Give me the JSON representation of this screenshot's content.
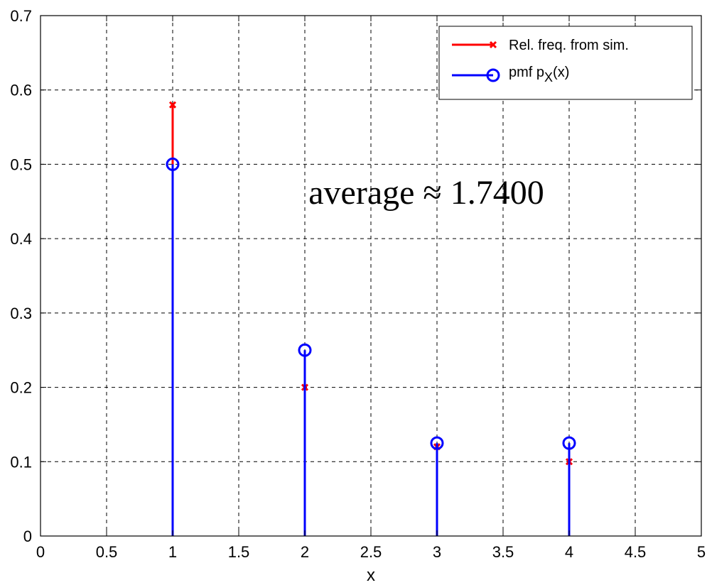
{
  "chart_data": {
    "type": "stem",
    "xlabel": "x",
    "ylabel": "",
    "xlim": [
      0,
      5
    ],
    "ylim": [
      0,
      0.7
    ],
    "xticks": [
      0,
      0.5,
      1,
      1.5,
      2,
      2.5,
      3,
      3.5,
      4,
      4.5,
      5
    ],
    "xtick_labels": [
      "0",
      "0.5",
      "1",
      "1.5",
      "2",
      "2.5",
      "3",
      "3.5",
      "4",
      "4.5",
      "5"
    ],
    "yticks": [
      0,
      0.1,
      0.2,
      0.3,
      0.4,
      0.5,
      0.6,
      0.7
    ],
    "ytick_labels": [
      "0",
      "0.1",
      "0.2",
      "0.3",
      "0.4",
      "0.5",
      "0.6",
      "0.7"
    ],
    "grid": true,
    "legend_position": "top-right",
    "series": [
      {
        "name": "Rel. freq. from sim.",
        "color": "#ff0000",
        "marker": "x",
        "x": [
          1,
          2,
          3,
          4
        ],
        "y": [
          0.58,
          0.2,
          0.12,
          0.1
        ]
      },
      {
        "name": "pmf p_X(x)",
        "legend_main": "pmf p",
        "legend_sub": "X",
        "legend_tail": "(x)",
        "color": "#0000ff",
        "marker": "o",
        "x": [
          1,
          2,
          3,
          4
        ],
        "y": [
          0.5,
          0.25,
          0.125,
          0.125
        ]
      }
    ],
    "annotation": "average ≈ 1.7400"
  }
}
